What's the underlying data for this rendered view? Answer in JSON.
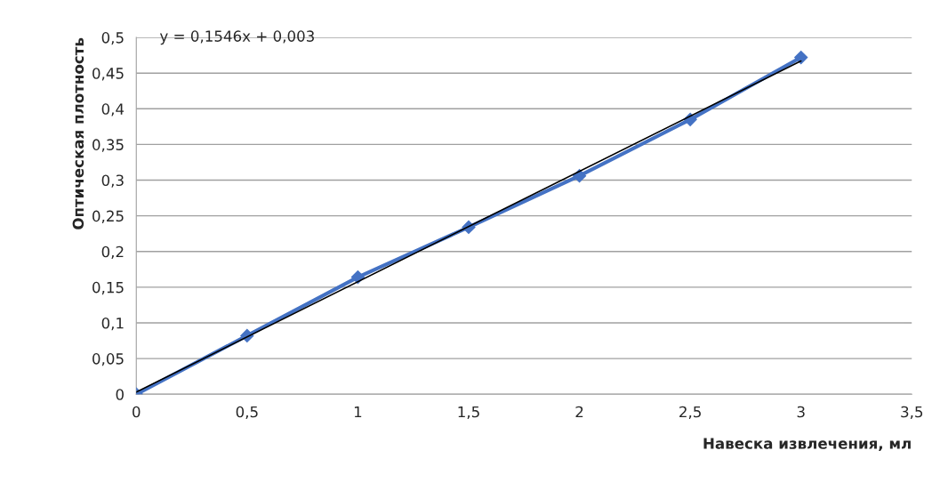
{
  "chart_data": {
    "type": "line",
    "xlabel": "Навеска извлечения, мл",
    "ylabel": "Оптическая плотность",
    "annotations": [
      "y = 0,1546x + 0,003"
    ],
    "series": [
      {
        "color": "#4472c4",
        "marker": "diamond",
        "x": [
          0,
          0.5,
          1,
          1.5,
          2,
          2.5,
          3
        ],
        "values": [
          0,
          0.082,
          0.164,
          0.234,
          0.306,
          0.385,
          0.472
        ]
      },
      {
        "color": "#000000",
        "marker": "none",
        "x": [
          0,
          3
        ],
        "values": [
          0.003,
          0.467
        ]
      }
    ],
    "xlim": [
      0,
      3.5
    ],
    "ylim": [
      0,
      0.5
    ],
    "xticks": [
      {
        "value": 0,
        "label": "0"
      },
      {
        "value": 0.5,
        "label": "0,5"
      },
      {
        "value": 1,
        "label": "1"
      },
      {
        "value": 1.5,
        "label": "1,5"
      },
      {
        "value": 2,
        "label": "2"
      },
      {
        "value": 2.5,
        "label": "2,5"
      },
      {
        "value": 3,
        "label": "3"
      },
      {
        "value": 3.5,
        "label": "3,5"
      }
    ],
    "yticks": [
      {
        "value": 0,
        "label": "0"
      },
      {
        "value": 0.05,
        "label": "0,05"
      },
      {
        "value": 0.1,
        "label": "0,1"
      },
      {
        "value": 0.15,
        "label": "0,15"
      },
      {
        "value": 0.2,
        "label": "0,2"
      },
      {
        "value": 0.25,
        "label": "0,25"
      },
      {
        "value": 0.3,
        "label": "0,3"
      },
      {
        "value": 0.35,
        "label": "0,35"
      },
      {
        "value": 0.4,
        "label": "0,4"
      },
      {
        "value": 0.45,
        "label": "0,45"
      },
      {
        "value": 0.5,
        "label": "0,5"
      }
    ],
    "grid": "y",
    "legend": false
  }
}
